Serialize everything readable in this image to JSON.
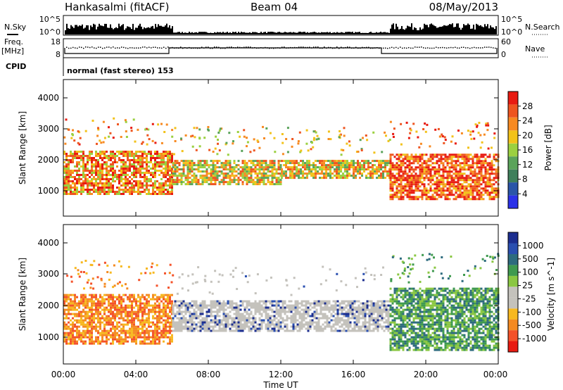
{
  "header": {
    "radar": "Hankasalmi (fitACF)",
    "beam": "Beam 04",
    "date": "08/May/2013"
  },
  "strips": {
    "nsky_label": "N.Sky",
    "nsky_ticks": [
      "10^5",
      "10^0"
    ],
    "nsearch_label": "N.Search",
    "freq_label_1": "Freq.",
    "freq_label_2": "[MHz]",
    "freq_ticks": [
      "18",
      "8"
    ],
    "nave_ticks": [
      "60",
      "0"
    ],
    "nave_label": "Nave",
    "cpid_label": "CPID",
    "cpid_text": "normal (fast stereo) 153"
  },
  "colors": {
    "power": [
      "#2b31e8",
      "#2a55a8",
      "#3f7f5b",
      "#5aa35a",
      "#9bd040",
      "#f2c21a",
      "#f78a22",
      "#ee5520",
      "#e81b12"
    ],
    "velocity": [
      "#e81b12",
      "#f4522a",
      "#f48a22",
      "#f7b820",
      "#c4c2bc",
      "#c4c2bc",
      "#8ac742",
      "#3f9a4f",
      "#2d6b7e",
      "#2a4fb0",
      "#1c2e8f"
    ]
  },
  "chart_data": [
    {
      "type": "heatmap",
      "name": "power",
      "ylabel": "Slant Range [km]",
      "yticks": [
        "1000",
        "2000",
        "3000",
        "4000"
      ],
      "ylim": [
        180,
        4600
      ],
      "xlim": [
        "00:00",
        "24:00"
      ],
      "colorbar_label": "Power [dB]",
      "colorbar_ticks": [
        "4",
        "8",
        "12",
        "16",
        "20",
        "24",
        "28"
      ],
      "echo_bands": [
        {
          "time_start": "00:00",
          "time_end": "06:00",
          "range_low_km": 900,
          "range_high_km": 2300,
          "power_db": 22
        },
        {
          "time_start": "06:00",
          "time_end": "12:00",
          "range_low_km": 1200,
          "range_high_km": 2000,
          "power_db": 18
        },
        {
          "time_start": "12:00",
          "time_end": "18:00",
          "range_low_km": 1400,
          "range_high_km": 2000,
          "power_db": 20
        },
        {
          "time_start": "18:00",
          "time_end": "24:00",
          "range_low_km": 700,
          "range_high_km": 2200,
          "power_db": 24
        }
      ]
    },
    {
      "type": "heatmap",
      "name": "velocity",
      "ylabel": "Slant Range [km]",
      "yticks": [
        "1000",
        "2000",
        "3000",
        "4000"
      ],
      "ylim": [
        180,
        4600
      ],
      "xlabel": "Time UT",
      "xticks": [
        "00:00",
        "04:00",
        "08:00",
        "12:00",
        "16:00",
        "20:00",
        "00:00"
      ],
      "xlim": [
        "00:00",
        "24:00"
      ],
      "colorbar_label": "Velocity [m s^-1]",
      "colorbar_ticks": [
        "1000",
        "500",
        "100",
        "25",
        "-25",
        "-100",
        "-500",
        "-1000"
      ],
      "echo_bands": [
        {
          "time_start": "00:00",
          "time_end": "06:00",
          "range_low_km": 800,
          "range_high_km": 2400,
          "velocity_ms": -50
        },
        {
          "time_start": "06:00",
          "time_end": "18:00",
          "range_low_km": 1200,
          "range_high_km": 2200,
          "velocity_ms": 0
        },
        {
          "time_start": "18:00",
          "time_end": "24:00",
          "range_low_km": 600,
          "range_high_km": 2600,
          "velocity_ms": 120
        }
      ]
    }
  ]
}
